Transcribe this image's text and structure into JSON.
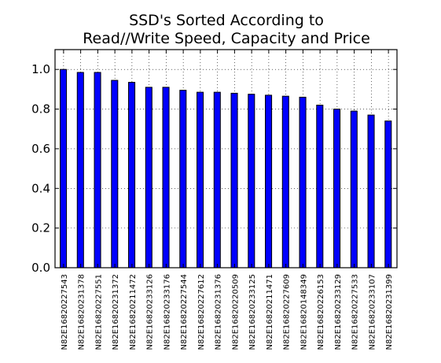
{
  "chart_data": {
    "type": "bar",
    "title": [
      "SSD's Sorted According to",
      "Read//Write Speed, Capacity and Price"
    ],
    "xlabel": "",
    "ylabel": "",
    "ylim": [
      0.0,
      1.1
    ],
    "yticks": [
      "0.0",
      "0.2",
      "0.4",
      "0.6",
      "0.8",
      "1.0"
    ],
    "grid": true,
    "bar_color": "#0000ff",
    "categories": [
      "N82E16820227543",
      "N82E16820231378",
      "N82E16820227551",
      "N82E16820231372",
      "N82E16820211472",
      "N82E16820233126",
      "N82E16820233176",
      "N82E16820227544",
      "N82E16820227612",
      "N82E16820231376",
      "N82E16820220509",
      "N82E16820233125",
      "N82E16820211471",
      "N82E16820227609",
      "N82E16820148349",
      "N82E16820226153",
      "N82E16820233129",
      "N82E16820227533",
      "N82E16820233107",
      "N82E16820231399"
    ],
    "values": [
      1.0,
      0.985,
      0.985,
      0.945,
      0.935,
      0.91,
      0.91,
      0.895,
      0.885,
      0.885,
      0.88,
      0.875,
      0.87,
      0.865,
      0.86,
      0.82,
      0.8,
      0.79,
      0.77,
      0.74
    ]
  }
}
